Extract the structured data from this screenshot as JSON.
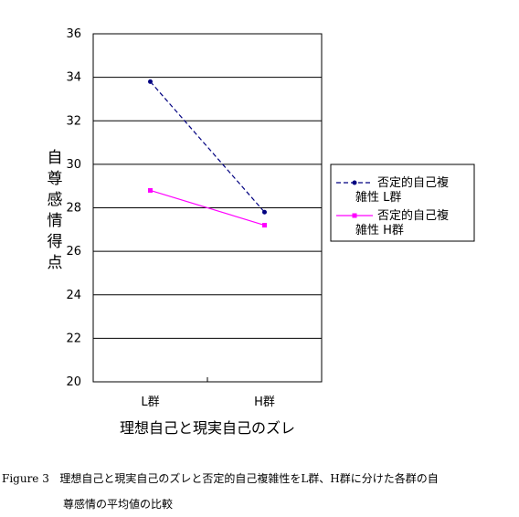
{
  "chart_data": {
    "type": "line",
    "categories": [
      "L群",
      "H群"
    ],
    "series": [
      {
        "name": "否定的自己複雑性  L群",
        "values": [
          33.8,
          27.8
        ],
        "color": "#000080",
        "style": "dashed",
        "marker": "circle"
      },
      {
        "name": "否定的自己複雑性  H群",
        "values": [
          28.8,
          27.2
        ],
        "color": "#ff00ff",
        "style": "solid",
        "marker": "square"
      }
    ],
    "xlabel": "理想自己と現実自己のズレ",
    "ylabel": "自尊感情得点",
    "ylim": [
      20,
      36
    ],
    "yticks": [
      20,
      22,
      24,
      26,
      28,
      30,
      32,
      34,
      36
    ],
    "grid": true,
    "legend": "right"
  },
  "caption": {
    "figure_label": "Figure 3",
    "text_line1": "理想自己と現実自己のズレと否定的自己複雑性をL群、H群に分けた各群の自",
    "text_line2": "尊感情の平均値の比較"
  }
}
